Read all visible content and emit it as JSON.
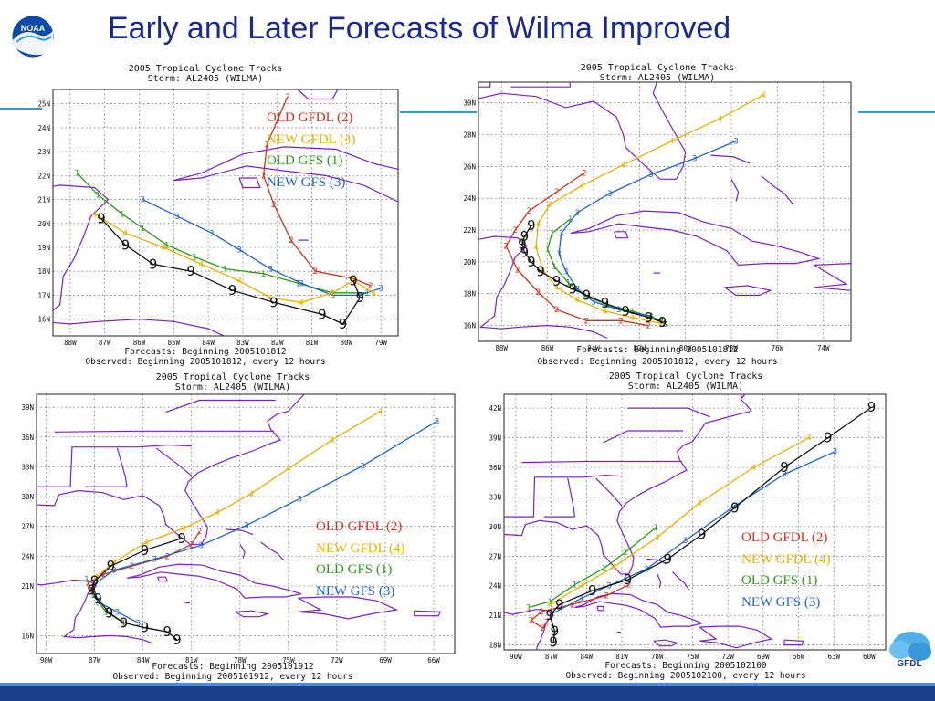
{
  "slide": {
    "title": "Early and Later Forecasts of Wilma Improved",
    "logos": {
      "left": "noaa-logo",
      "right": "gfdl-logo",
      "right_text": "GFDL",
      "left_text": "NOAA"
    }
  },
  "colors": {
    "old_gfdl": "#d0301b",
    "new_gfdl": "#e8b000",
    "old_gfs": "#2a9a14",
    "new_gfs": "#1f63c8",
    "observed": "#111111",
    "land": "#7a1fc8",
    "title": "#1a2a8c"
  },
  "legend": [
    {
      "label": "OLD GFDL (2)",
      "color": "#d0301b",
      "marker": "2"
    },
    {
      "label": "NEW GFDL (4)",
      "color": "#e8b000",
      "marker": "4"
    },
    {
      "label": "OLD GFS  (1)",
      "color": "#2a9a14",
      "marker": "1"
    },
    {
      "label": "NEW GFS (3)",
      "color": "#1f63c8",
      "marker": "3"
    }
  ],
  "maps": [
    {
      "title1": "2005 Tropical Cyclone Tracks",
      "title2": "Storm: AL2405 (WILMA)",
      "forecast": "Forecasts: Beginning 2005101812",
      "observed": "Observed: Beginning 2005101812, every 12 hours",
      "lon_labels": [
        "88W",
        "87W",
        "86W",
        "85W",
        "84W",
        "83W",
        "82W",
        "81W",
        "80W",
        "79W"
      ],
      "lat_labels": [
        "25N",
        "24N",
        "23N",
        "22N",
        "21N",
        "20N",
        "19N",
        "18N",
        "17N",
        "16N"
      ],
      "lon_range": [
        88.5,
        78.5
      ],
      "lat_range": [
        15.3,
        25.6
      ],
      "tracks": {
        "2": [
          [
            81.7,
            25.3
          ],
          [
            82.3,
            23.3
          ],
          [
            82.4,
            22.0
          ],
          [
            82.1,
            20.8
          ],
          [
            81.6,
            19.3
          ],
          [
            80.9,
            18.0
          ],
          [
            79.8,
            17.7
          ],
          [
            79.3,
            17.4
          ]
        ],
        "4": [
          [
            87.3,
            20.4
          ],
          [
            86.4,
            19.6
          ],
          [
            85.3,
            19.0
          ],
          [
            84.2,
            18.3
          ],
          [
            83.1,
            17.6
          ],
          [
            82.2,
            16.9
          ],
          [
            81.3,
            16.7
          ],
          [
            80.4,
            17.1
          ],
          [
            79.8,
            17.6
          ],
          [
            79.2,
            17.1
          ]
        ],
        "1": [
          [
            87.8,
            22.1
          ],
          [
            87.2,
            21.2
          ],
          [
            86.5,
            20.4
          ],
          [
            85.9,
            19.8
          ],
          [
            85.2,
            19.1
          ],
          [
            84.4,
            18.6
          ],
          [
            83.5,
            18.1
          ],
          [
            82.4,
            17.9
          ],
          [
            81.4,
            17.5
          ],
          [
            80.4,
            17.1
          ],
          [
            79.4,
            17.1
          ]
        ],
        "3": [
          [
            85.9,
            21.0
          ],
          [
            84.9,
            20.3
          ],
          [
            83.9,
            19.6
          ],
          [
            83.1,
            18.9
          ],
          [
            82.2,
            18.1
          ],
          [
            81.3,
            17.5
          ],
          [
            80.4,
            17.0
          ],
          [
            79.6,
            17.0
          ],
          [
            79.0,
            17.3
          ]
        ],
        "9": [
          [
            87.1,
            20.2
          ],
          [
            86.4,
            19.1
          ],
          [
            85.6,
            18.3
          ],
          [
            84.5,
            18.0
          ],
          [
            83.3,
            17.2
          ],
          [
            82.1,
            16.7
          ],
          [
            80.7,
            16.2
          ],
          [
            80.1,
            15.8
          ],
          [
            79.6,
            16.9
          ],
          [
            79.8,
            17.6
          ]
        ]
      }
    },
    {
      "title1": "2005 Tropical Cyclone Tracks",
      "title2": "Storm: AL2405 (WILMA)",
      "forecast": "Forecasts: Beginning 2005101812",
      "observed": "Observed: Beginning 2005101812, every 12 hours",
      "lon_labels": [
        "88W",
        "86W",
        "84W",
        "82W",
        "80W",
        "78W",
        "76W",
        "74W"
      ],
      "lat_labels": [
        "30N",
        "28N",
        "26N",
        "24N",
        "22N",
        "20N",
        "18N",
        "16N"
      ],
      "lon_range": [
        89.0,
        72.8
      ],
      "lat_range": [
        15.0,
        31.3
      ],
      "tracks": {
        "2": [
          [
            84.4,
            25.6
          ],
          [
            85.6,
            24.4
          ],
          [
            86.8,
            23.2
          ],
          [
            87.4,
            22.0
          ],
          [
            87.8,
            21.0
          ],
          [
            87.3,
            19.5
          ],
          [
            86.4,
            18.1
          ],
          [
            85.6,
            17.0
          ],
          [
            84.3,
            16.3
          ],
          [
            82.8,
            16.3
          ],
          [
            81.6,
            16.0
          ]
        ],
        "4": [
          [
            76.6,
            30.5
          ],
          [
            78.5,
            29.0
          ],
          [
            80.6,
            27.6
          ],
          [
            82.7,
            26.1
          ],
          [
            84.5,
            24.8
          ],
          [
            85.9,
            23.6
          ],
          [
            86.4,
            22.4
          ],
          [
            86.5,
            20.9
          ],
          [
            86.2,
            19.5
          ],
          [
            85.6,
            18.4
          ],
          [
            84.7,
            17.6
          ],
          [
            83.5,
            16.9
          ],
          [
            82.3,
            16.5
          ],
          [
            81.0,
            16.1
          ]
        ],
        "1": [
          [
            85.0,
            22.7
          ],
          [
            85.8,
            21.8
          ],
          [
            86.0,
            20.8
          ],
          [
            85.7,
            19.7
          ],
          [
            85.1,
            18.7
          ],
          [
            84.4,
            17.9
          ],
          [
            83.4,
            17.3
          ],
          [
            82.3,
            16.9
          ],
          [
            81.0,
            16.3
          ]
        ],
        "3": [
          [
            77.8,
            27.6
          ],
          [
            79.6,
            26.5
          ],
          [
            81.5,
            25.5
          ],
          [
            83.3,
            24.3
          ],
          [
            84.7,
            23.1
          ],
          [
            85.4,
            21.8
          ],
          [
            85.5,
            20.5
          ],
          [
            85.2,
            19.4
          ],
          [
            84.7,
            18.3
          ],
          [
            84.0,
            17.5
          ],
          [
            82.9,
            17.0
          ],
          [
            81.5,
            16.6
          ],
          [
            80.9,
            16.1
          ]
        ],
        "9": [
          [
            86.7,
            22.3
          ],
          [
            87.0,
            21.6
          ],
          [
            87.1,
            21.1
          ],
          [
            87.0,
            20.6
          ],
          [
            86.7,
            20.0
          ],
          [
            86.3,
            19.4
          ],
          [
            85.6,
            18.8
          ],
          [
            84.9,
            18.3
          ],
          [
            84.3,
            17.9
          ],
          [
            83.5,
            17.4
          ],
          [
            82.6,
            16.9
          ],
          [
            81.6,
            16.5
          ],
          [
            81.0,
            16.2
          ]
        ]
      }
    },
    {
      "title1": "2005 Tropical Cyclone Tracks",
      "title2": "Storm: AL2405 (WILMA)",
      "forecast": "Forecasts: Beginning 2005101912",
      "observed": "Observed: Beginning 2005101912, every 12 hours",
      "lon_labels": [
        "90W",
        "87W",
        "84W",
        "81W",
        "78W",
        "75W",
        "72W",
        "69W",
        "66W"
      ],
      "lat_labels": [
        "39N",
        "36N",
        "33N",
        "30N",
        "27N",
        "24N",
        "21N",
        "16N"
      ],
      "lon_range": [
        90.6,
        64.7
      ],
      "lat_range": [
        14.2,
        40.3
      ],
      "tracks": {
        "2": [
          [
            87.2,
            20.6
          ],
          [
            87.4,
            21.3
          ],
          [
            86.4,
            22.2
          ],
          [
            84.7,
            23.0
          ],
          [
            82.5,
            24.0
          ],
          [
            81.0,
            25.2
          ],
          [
            80.5,
            26.5
          ]
        ],
        "4": [
          [
            69.3,
            38.6
          ],
          [
            72.3,
            35.7
          ],
          [
            75.0,
            32.8
          ],
          [
            77.3,
            30.3
          ],
          [
            79.4,
            28.4
          ],
          [
            81.5,
            26.8
          ],
          [
            83.8,
            25.4
          ],
          [
            85.8,
            23.4
          ],
          [
            86.9,
            21.9
          ]
        ],
        "1": [
          [
            87.5,
            21.7
          ],
          [
            87.1,
            20.1
          ],
          [
            86.3,
            18.4
          ],
          [
            85.2,
            17.3
          ]
        ],
        "3": [
          [
            65.8,
            37.6
          ],
          [
            70.4,
            33.1
          ],
          [
            74.3,
            29.8
          ],
          [
            77.6,
            27.1
          ],
          [
            80.4,
            25.1
          ],
          [
            83.3,
            23.7
          ],
          [
            85.8,
            22.6
          ],
          [
            87.1,
            21.1
          ],
          [
            86.8,
            19.4
          ],
          [
            85.6,
            18.4
          ],
          [
            84.3,
            17.3
          ]
        ],
        "9": [
          [
            81.6,
            25.8
          ],
          [
            83.9,
            24.6
          ],
          [
            86.0,
            23.0
          ],
          [
            87.0,
            21.5
          ],
          [
            87.2,
            20.6
          ],
          [
            86.8,
            19.7
          ],
          [
            86.1,
            18.3
          ],
          [
            85.2,
            17.3
          ],
          [
            83.9,
            16.8
          ],
          [
            82.5,
            16.4
          ],
          [
            81.9,
            15.6
          ]
        ]
      }
    },
    {
      "title1": "2005 Tropical Cyclone Tracks",
      "title2": "Storm: AL2405 (WILMA)",
      "forecast": "Forecasts: Beginning 2005102100",
      "observed": "Observed: Beginning 2005102100, every 12 hours",
      "lon_labels": [
        "90W",
        "87W",
        "84W",
        "81W",
        "78W",
        "75W",
        "72W",
        "69W",
        "66W",
        "63W",
        "60W"
      ],
      "lat_labels": [
        "42N",
        "39N",
        "36N",
        "33N",
        "30N",
        "27N",
        "24N",
        "21N",
        "18N"
      ],
      "lon_range": [
        91.0,
        58.6
      ],
      "lat_range": [
        17.5,
        43.4
      ],
      "tracks": {
        "2": [
          [
            87.4,
            20.3
          ],
          [
            87.7,
            19.7
          ],
          [
            88.7,
            20.5
          ],
          [
            87.8,
            21.4
          ],
          [
            85.2,
            22.1
          ],
          [
            82.3,
            23.0
          ],
          [
            80.4,
            24.1
          ]
        ],
        "4": [
          [
            65.1,
            39.0
          ],
          [
            69.8,
            36.0
          ],
          [
            74.4,
            32.4
          ],
          [
            78.0,
            28.9
          ],
          [
            81.7,
            25.9
          ],
          [
            84.4,
            24.0
          ],
          [
            87.1,
            22.1
          ]
        ],
        "1": [
          [
            78.1,
            29.9
          ],
          [
            80.7,
            27.4
          ],
          [
            82.5,
            25.8
          ],
          [
            85.0,
            24.1
          ],
          [
            87.1,
            22.4
          ],
          [
            88.9,
            21.8
          ]
        ],
        "3": [
          [
            62.9,
            37.6
          ],
          [
            67.2,
            35.3
          ],
          [
            71.4,
            32.1
          ],
          [
            75.6,
            28.6
          ],
          [
            78.9,
            25.7
          ],
          [
            82.1,
            24.0
          ],
          [
            84.5,
            22.7
          ],
          [
            87.0,
            21.1
          ]
        ],
        "9": [
          [
            59.8,
            42.1
          ],
          [
            63.5,
            39.0
          ],
          [
            67.2,
            36.0
          ],
          [
            71.4,
            31.9
          ],
          [
            74.2,
            29.2
          ],
          [
            77.1,
            26.7
          ],
          [
            80.5,
            24.6
          ],
          [
            83.5,
            23.5
          ],
          [
            86.3,
            22.1
          ],
          [
            87.1,
            21.0
          ],
          [
            86.7,
            19.4
          ],
          [
            86.8,
            18.3
          ]
        ]
      }
    }
  ]
}
